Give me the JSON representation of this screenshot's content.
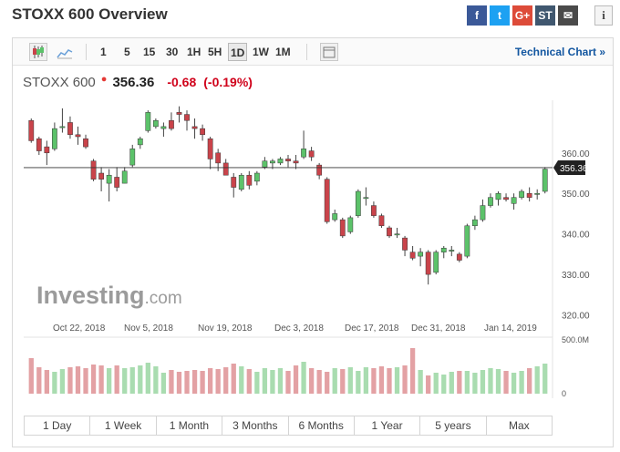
{
  "page": {
    "title": "STOXX 600 Overview"
  },
  "share": [
    {
      "name": "facebook-icon",
      "glyph": "f",
      "color": "#3b5998"
    },
    {
      "name": "twitter-icon",
      "glyph": "t",
      "color": "#1da1f2"
    },
    {
      "name": "google-plus-icon",
      "glyph": "G+",
      "color": "#dd4b39"
    },
    {
      "name": "stocktwits-icon",
      "glyph": "ST",
      "color": "#40576f"
    },
    {
      "name": "email-icon",
      "glyph": "✉",
      "color": "#4a4a4a"
    }
  ],
  "info_glyph": "i",
  "toolbar": {
    "intervals": [
      "1",
      "5",
      "15",
      "30",
      "1H",
      "5H",
      "1D",
      "1W",
      "1M"
    ],
    "active_interval": "1D",
    "technical_chart_label": "Technical Chart »"
  },
  "quote": {
    "name": "STOXX 600",
    "star": "●",
    "price": "356.36",
    "change": "-0.68",
    "change_pct": "(-0.19%)"
  },
  "watermark": {
    "brand": "Investing",
    "suffix": ".com"
  },
  "chart_data": {
    "type": "candlestick",
    "y_axis": {
      "ticks": [
        360,
        350,
        340,
        330,
        320
      ],
      "tick_labels": [
        "360.00",
        "350.00",
        "340.00",
        "330.00",
        "320.00"
      ],
      "range": [
        319,
        373
      ]
    },
    "x_labels": [
      "Oct 22, 2018",
      "Nov 5, 2018",
      "Nov 19, 2018",
      "Dec 3, 2018",
      "Dec 17, 2018",
      "Dec 31, 2018",
      "Jan 14, 2019"
    ],
    "current_price_line": 356.36,
    "current_price_label": "356.36",
    "volume_axis": {
      "labels": [
        "500.0M",
        "0"
      ]
    },
    "up_color": "#5cc26a",
    "down_color": "#c9434a",
    "candles": [
      [
        368.0,
        363.0,
        368.5,
        362.5
      ],
      [
        363.5,
        360.5,
        364.0,
        359.5
      ],
      [
        361.5,
        360.0,
        363.0,
        357.0
      ],
      [
        361.0,
        366.0,
        367.5,
        360.5
      ],
      [
        366.5,
        366.5,
        371.0,
        365.0
      ],
      [
        367.5,
        364.5,
        369.0,
        363.5
      ],
      [
        364.5,
        364.0,
        366.5,
        362.0
      ],
      [
        363.5,
        361.5,
        364.5,
        361.0
      ],
      [
        358.0,
        353.5,
        358.5,
        353.0
      ],
      [
        355.0,
        353.5,
        356.5,
        350.5
      ],
      [
        352.5,
        354.5,
        356.0,
        348.0
      ],
      [
        354.0,
        351.5,
        356.5,
        350.5
      ],
      [
        352.5,
        355.5,
        356.5,
        352.5
      ],
      [
        357.0,
        361.0,
        362.0,
        356.5
      ],
      [
        362.0,
        363.5,
        364.0,
        361.0
      ],
      [
        365.5,
        370.0,
        370.5,
        365.0
      ],
      [
        366.5,
        368.0,
        368.5,
        366.0
      ],
      [
        366.0,
        366.5,
        367.5,
        364.0
      ],
      [
        368.0,
        366.0,
        370.0,
        365.5
      ],
      [
        370.0,
        369.5,
        371.5,
        367.5
      ],
      [
        369.5,
        368.0,
        370.5,
        365.5
      ],
      [
        366.5,
        366.0,
        368.5,
        363.5
      ],
      [
        366.0,
        364.5,
        367.0,
        363.0
      ],
      [
        363.5,
        358.5,
        364.0,
        356.0
      ],
      [
        360.0,
        357.5,
        361.0,
        355.5
      ],
      [
        357.5,
        354.5,
        358.5,
        354.5
      ],
      [
        354.0,
        351.5,
        355.0,
        349.0
      ],
      [
        351.0,
        354.5,
        355.0,
        350.5
      ],
      [
        354.5,
        352.0,
        355.5,
        351.0
      ],
      [
        353.0,
        355.0,
        355.5,
        352.0
      ],
      [
        356.5,
        358.0,
        359.0,
        356.0
      ],
      [
        357.5,
        358.0,
        358.5,
        356.0
      ],
      [
        357.5,
        358.5,
        359.0,
        357.0
      ],
      [
        358.5,
        358.0,
        359.5,
        356.5
      ],
      [
        358.0,
        357.5,
        359.5,
        356.0
      ],
      [
        359.0,
        361.0,
        365.5,
        358.5
      ],
      [
        360.5,
        359.0,
        361.5,
        358.0
      ],
      [
        357.0,
        354.5,
        357.5,
        353.5
      ],
      [
        353.5,
        343.0,
        354.0,
        342.5
      ],
      [
        343.5,
        345.0,
        346.0,
        343.0
      ],
      [
        343.5,
        339.5,
        344.0,
        339.0
      ],
      [
        340.5,
        344.0,
        344.5,
        340.0
      ],
      [
        344.5,
        350.5,
        351.0,
        344.0
      ],
      [
        349.0,
        349.0,
        351.5,
        347.0
      ],
      [
        347.0,
        344.5,
        348.0,
        344.0
      ],
      [
        344.5,
        342.0,
        345.0,
        341.5
      ],
      [
        341.5,
        339.5,
        342.0,
        339.0
      ],
      [
        340.0,
        340.0,
        341.5,
        339.0
      ],
      [
        339.0,
        336.0,
        339.5,
        334.5
      ],
      [
        335.5,
        334.0,
        337.0,
        333.5
      ],
      [
        334.5,
        335.5,
        336.5,
        332.0
      ],
      [
        335.5,
        330.0,
        336.0,
        327.5
      ],
      [
        330.5,
        335.5,
        336.0,
        330.0
      ],
      [
        335.5,
        336.5,
        337.0,
        334.0
      ],
      [
        336.0,
        336.0,
        337.0,
        334.5
      ],
      [
        335.0,
        333.5,
        335.5,
        333.0
      ],
      [
        334.5,
        342.0,
        342.5,
        334.0
      ],
      [
        342.0,
        343.5,
        344.5,
        341.0
      ],
      [
        343.5,
        347.0,
        348.5,
        343.0
      ],
      [
        347.0,
        349.0,
        350.0,
        346.5
      ],
      [
        348.5,
        350.0,
        350.5,
        347.0
      ],
      [
        349.0,
        348.5,
        350.0,
        348.0
      ],
      [
        347.5,
        349.0,
        350.0,
        346.0
      ],
      [
        349.0,
        350.5,
        351.0,
        348.5
      ],
      [
        350.0,
        349.0,
        351.5,
        348.0
      ],
      [
        350.0,
        350.0,
        351.0,
        348.5
      ],
      [
        350.5,
        356.0,
        356.5,
        350.0
      ]
    ],
    "volumes": [
      0.78,
      0.58,
      0.52,
      0.48,
      0.54,
      0.58,
      0.6,
      0.56,
      0.64,
      0.62,
      0.56,
      0.62,
      0.56,
      0.58,
      0.62,
      0.68,
      0.6,
      0.46,
      0.52,
      0.48,
      0.5,
      0.52,
      0.5,
      0.56,
      0.54,
      0.58,
      0.66,
      0.6,
      0.54,
      0.48,
      0.56,
      0.52,
      0.56,
      0.5,
      0.62,
      0.7,
      0.56,
      0.52,
      0.48,
      0.56,
      0.54,
      0.58,
      0.5,
      0.58,
      0.56,
      0.6,
      0.56,
      0.58,
      0.62,
      1.0,
      0.52,
      0.4,
      0.46,
      0.42,
      0.48,
      0.5,
      0.5,
      0.46,
      0.52,
      0.56,
      0.54,
      0.5,
      0.46,
      0.5,
      0.56,
      0.6,
      0.66
    ]
  },
  "range_buttons": [
    "1 Day",
    "1 Week",
    "1 Month",
    "3 Months",
    "6 Months",
    "1 Year",
    "5 years",
    "Max"
  ]
}
